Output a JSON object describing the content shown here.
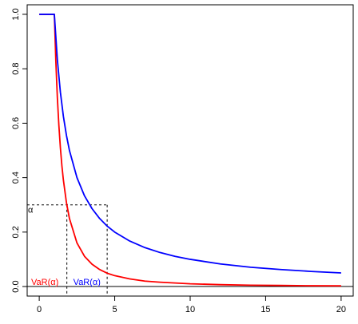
{
  "chart_data": {
    "type": "line",
    "title": "",
    "xlabel": "",
    "ylabel": "",
    "xlim": [
      -0.8,
      20.8
    ],
    "ylim": [
      -0.035,
      1.035
    ],
    "x_ticks": [
      0,
      5,
      10,
      15,
      20
    ],
    "y_ticks": [
      0.0,
      0.2,
      0.4,
      0.6,
      0.8,
      1.0
    ],
    "x_tick_labels": [
      "0",
      "5",
      "10",
      "15",
      "20"
    ],
    "y_tick_labels": [
      "0.0",
      "0.2",
      "0.4",
      "0.6",
      "0.8",
      "1.0"
    ],
    "series": [
      {
        "color": "#ff0000",
        "points": [
          [
            0,
            1.0
          ],
          [
            1,
            1.0
          ],
          [
            1.1,
            0.826
          ],
          [
            1.2,
            0.694
          ],
          [
            1.3,
            0.592
          ],
          [
            1.4,
            0.51
          ],
          [
            1.5,
            0.444
          ],
          [
            1.6,
            0.391
          ],
          [
            1.8,
            0.309
          ],
          [
            2,
            0.25
          ],
          [
            2.5,
            0.16
          ],
          [
            3,
            0.111
          ],
          [
            3.5,
            0.082
          ],
          [
            4,
            0.0625
          ],
          [
            4.5,
            0.049
          ],
          [
            5,
            0.04
          ],
          [
            6,
            0.028
          ],
          [
            7,
            0.02
          ],
          [
            8,
            0.016
          ],
          [
            10,
            0.01
          ],
          [
            12,
            0.007
          ],
          [
            14,
            0.005
          ],
          [
            16,
            0.004
          ],
          [
            18,
            0.003
          ],
          [
            20,
            0.0025
          ]
        ]
      },
      {
        "color": "#0000ff",
        "points": [
          [
            0,
            1.0
          ],
          [
            1,
            1.0
          ],
          [
            1.2,
            0.833
          ],
          [
            1.4,
            0.714
          ],
          [
            1.6,
            0.625
          ],
          [
            1.8,
            0.556
          ],
          [
            2,
            0.5
          ],
          [
            2.5,
            0.4
          ],
          [
            3,
            0.333
          ],
          [
            3.5,
            0.286
          ],
          [
            4,
            0.25
          ],
          [
            4.5,
            0.222
          ],
          [
            5,
            0.2
          ],
          [
            6,
            0.167
          ],
          [
            7,
            0.143
          ],
          [
            8,
            0.125
          ],
          [
            9,
            0.111
          ],
          [
            10,
            0.1
          ],
          [
            12,
            0.083
          ],
          [
            14,
            0.071
          ],
          [
            16,
            0.0625
          ],
          [
            18,
            0.0556
          ],
          [
            20,
            0.05
          ]
        ]
      }
    ],
    "reference_lines": {
      "alpha": 0.3,
      "var_red_x": 1.83,
      "var_blue_x": 4.5,
      "zero_line_y": 0
    },
    "annotations": {
      "alpha_label": "α",
      "var_red_label": "VaR(α)",
      "var_blue_label": "VaR(α)"
    }
  }
}
